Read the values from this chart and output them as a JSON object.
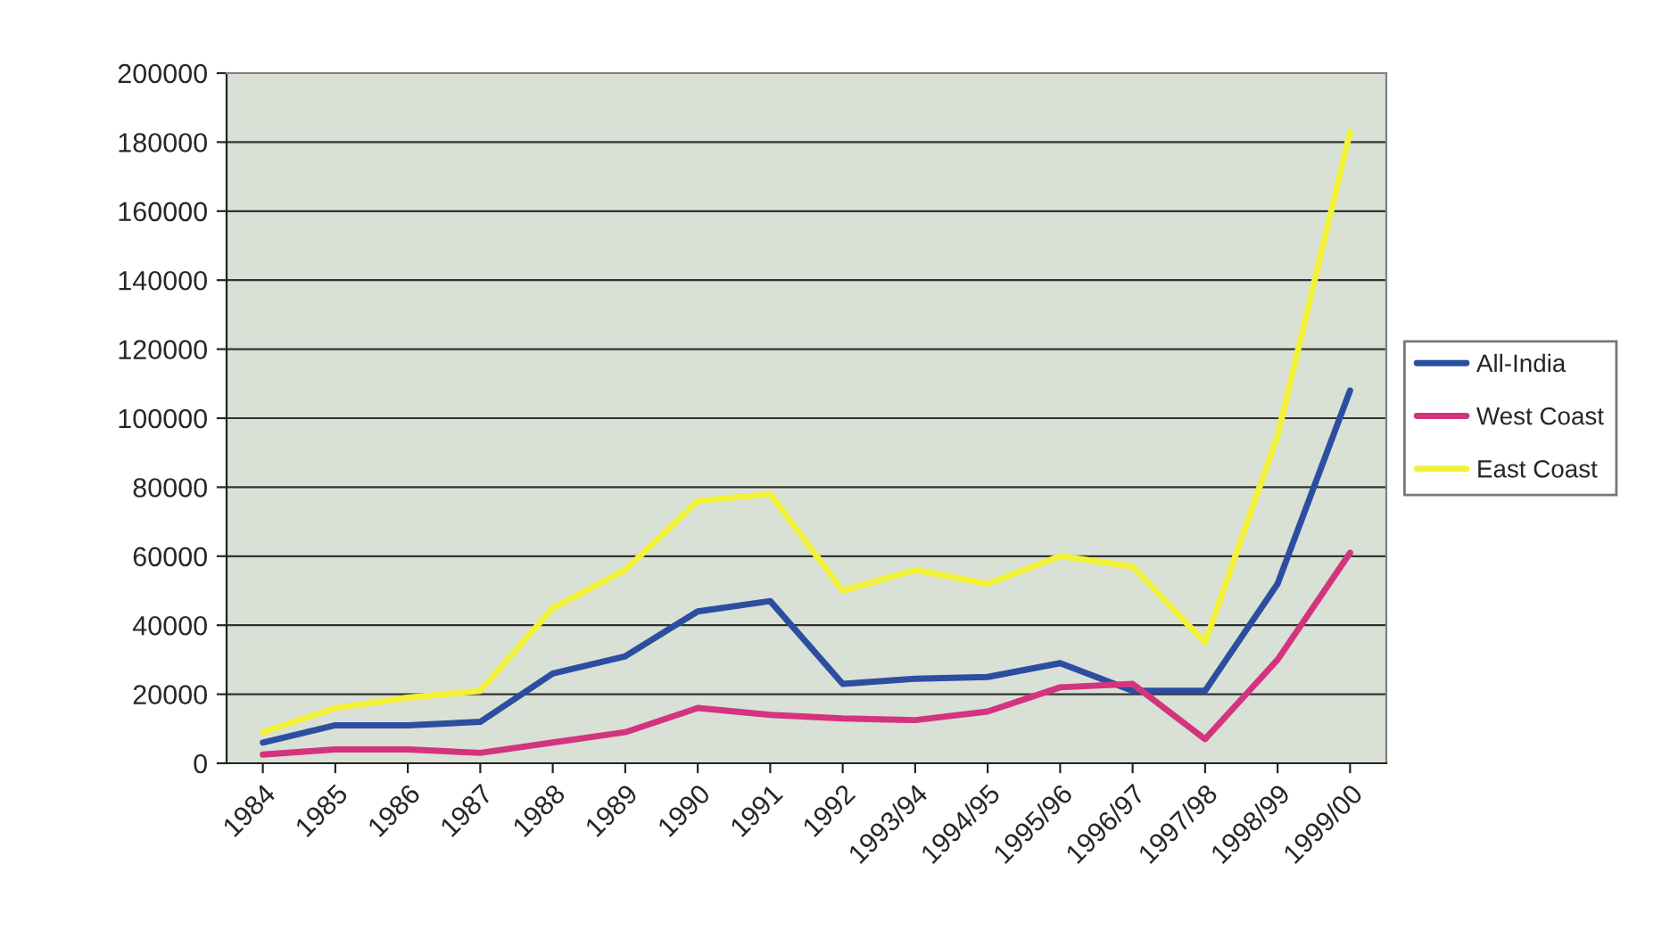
{
  "chart_data": {
    "type": "line",
    "categories": [
      "1984",
      "1985",
      "1986",
      "1987",
      "1988",
      "1989",
      "1990",
      "1991",
      "1992",
      "1993/94",
      "1994/95",
      "1995/96",
      "1996/97",
      "1997/98",
      "1998/99",
      "1999/00"
    ],
    "series": [
      {
        "name": "All-India",
        "color": "#2b4ea0",
        "values": [
          6000,
          11000,
          11000,
          12000,
          26000,
          31000,
          44000,
          47000,
          23000,
          24500,
          25000,
          29000,
          21000,
          21000,
          52000,
          108000
        ]
      },
      {
        "name": "West Coast",
        "color": "#d4347e",
        "values": [
          2500,
          4000,
          4000,
          3000,
          6000,
          9000,
          16000,
          14000,
          13000,
          12500,
          15000,
          22000,
          23000,
          7000,
          30000,
          61000
        ]
      },
      {
        "name": "East Coast",
        "color": "#f2f23a",
        "values": [
          9000,
          16000,
          19000,
          21000,
          45000,
          56000,
          76000,
          78000,
          50000,
          56000,
          52000,
          60000,
          57000,
          35000,
          95000,
          183000
        ]
      }
    ],
    "ylim": [
      0,
      200000
    ],
    "yticks": [
      0,
      20000,
      40000,
      60000,
      80000,
      100000,
      120000,
      140000,
      160000,
      180000,
      200000
    ],
    "grid": "y",
    "legend": "right",
    "marker": "none",
    "line_style": "solid"
  }
}
